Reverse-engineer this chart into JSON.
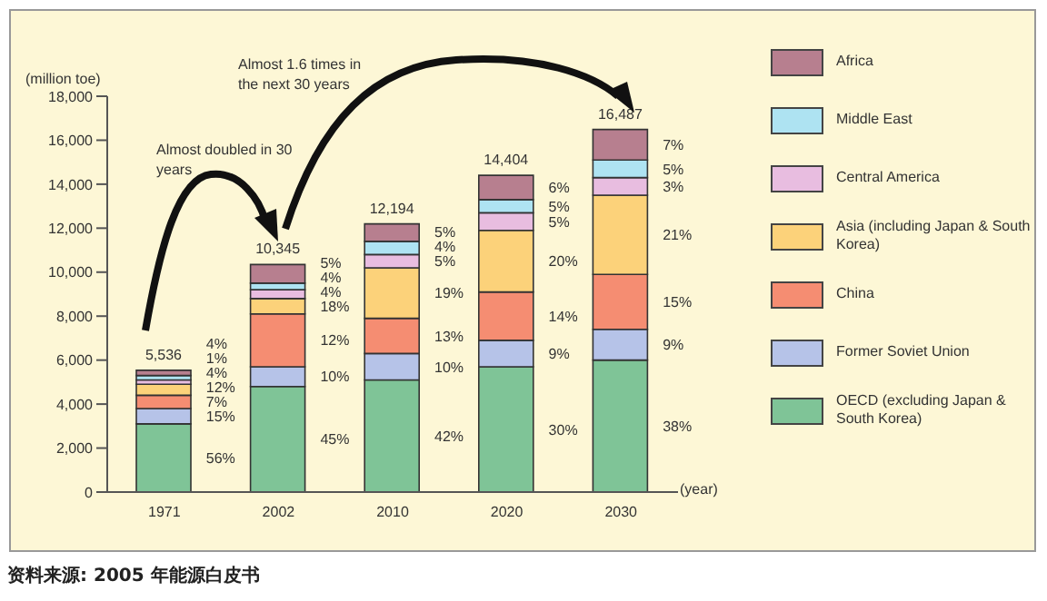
{
  "chart_data": {
    "type": "bar",
    "stacked": true,
    "ylabel": "(million toe)",
    "xlabel": "(year)",
    "categories": [
      "1971",
      "2002",
      "2010",
      "2020",
      "2030"
    ],
    "series": [
      {
        "name": "OECD (excluding Japan & South Korea)",
        "color": "#7fc497",
        "values": [
          3100,
          4800,
          5100,
          5700,
          6000
        ]
      },
      {
        "name": "Former Soviet Union",
        "color": "#b6c3e8",
        "values": [
          700,
          900,
          1200,
          1200,
          1400
        ]
      },
      {
        "name": "China",
        "color": "#f58d72",
        "values": [
          600,
          2400,
          1600,
          2200,
          2500
        ]
      },
      {
        "name": "Asia (including Japan & South Korea)",
        "color": "#fcd27a",
        "values": [
          500,
          700,
          2300,
          2800,
          3600
        ]
      },
      {
        "name": "Central America",
        "color": "#e8bde0",
        "values": [
          200,
          400,
          600,
          800,
          800
        ]
      },
      {
        "name": "Middle East",
        "color": "#aee3f2",
        "values": [
          200,
          300,
          600,
          600,
          800
        ]
      },
      {
        "name": "Africa",
        "color": "#b77f8f",
        "values": [
          236,
          845,
          794,
          1104,
          1387
        ]
      }
    ],
    "totals": [
      "5,536",
      "10,345",
      "12,194",
      "14,404",
      "16,487"
    ],
    "ylim": [
      0,
      18000
    ],
    "yticks": [
      {
        "value": 0,
        "label": "0"
      },
      {
        "value": 2000,
        "label": "2,000"
      },
      {
        "value": 4000,
        "label": "4,000"
      },
      {
        "value": 6000,
        "label": "6,000"
      },
      {
        "value": 8000,
        "label": "8,000"
      },
      {
        "value": 10000,
        "label": "10,000"
      },
      {
        "value": 12000,
        "label": "12,000"
      },
      {
        "value": 14000,
        "label": "14,000"
      },
      {
        "value": 16000,
        "label": "16,000"
      },
      {
        "value": 18000,
        "label": "18,000"
      }
    ],
    "grid": false,
    "legend": "right",
    "annotations": [
      "Almost doubled in 30 years",
      "Almost 1.6 times in the next 30 years",
      "资料来源: 2005 年能源白皮书",
      "4%",
      "1%",
      "4%",
      "12%",
      "7%",
      "15%",
      "56%",
      "5%",
      "4%",
      "4%",
      "18%",
      "12%",
      "10%",
      "45%",
      "5%",
      "4%",
      "5%",
      "19%",
      "13%",
      "10%",
      "42%",
      "6%",
      "5%",
      "5%",
      "20%",
      "14%",
      "9%",
      "30%",
      "7%",
      "5%",
      "3%",
      "21%",
      "15%",
      "9%",
      "38%"
    ]
  }
}
